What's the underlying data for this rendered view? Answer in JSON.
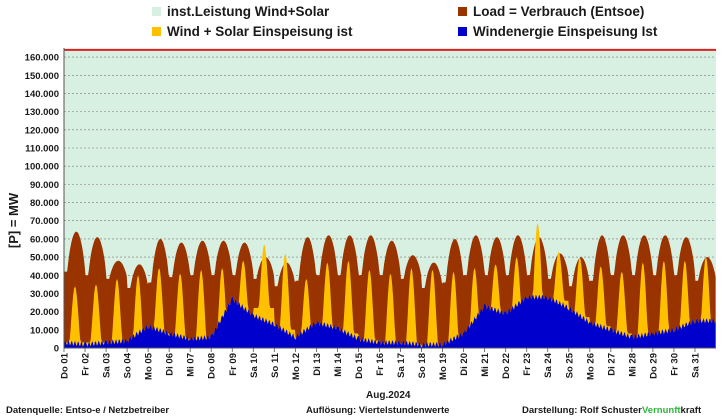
{
  "chart_data": {
    "type": "area",
    "title": "",
    "xlabel": "Aug.2024",
    "ylabel": "[P] = MW",
    "ylim": [
      0,
      165000
    ],
    "yticks": [
      0,
      10000,
      20000,
      30000,
      40000,
      50000,
      60000,
      70000,
      80000,
      90000,
      100000,
      110000,
      120000,
      130000,
      140000,
      150000,
      160000
    ],
    "ytick_labels": [
      "0",
      "10.000",
      "20.000",
      "30.000",
      "40.000",
      "50.000",
      "60.000",
      "70.000",
      "80.000",
      "90.000",
      "100.000",
      "110.000",
      "120.000",
      "130.000",
      "140.000",
      "150.000",
      "160.000"
    ],
    "categories": [
      "Do 01",
      "Fr 02",
      "Sa 03",
      "So 04",
      "Mo 05",
      "Di 06",
      "Mi 07",
      "Do 08",
      "Fr 09",
      "Sa 10",
      "So 11",
      "Mo 12",
      "Di 13",
      "Mi 14",
      "Do 15",
      "Fr 16",
      "Sa 17",
      "So 18",
      "Mo 19",
      "Di 20",
      "Mi 21",
      "Do 22",
      "Fr 23",
      "Sa 24",
      "So 25",
      "Mo 26",
      "Di 27",
      "Mi 28",
      "Do 29",
      "Fr 30",
      "Sa 31"
    ],
    "grid": true,
    "legend_position": "top",
    "installed_capacity_mw": 164000,
    "series": [
      {
        "name": "inst.Leistung Wind+Solar",
        "color": "#d7f0e2",
        "values": [
          164000,
          164000,
          164000,
          164000,
          164000,
          164000,
          164000,
          164000,
          164000,
          164000,
          164000,
          164000,
          164000,
          164000,
          164000,
          164000,
          164000,
          164000,
          164000,
          164000,
          164000,
          164000,
          164000,
          164000,
          164000,
          164000,
          164000,
          164000,
          164000,
          164000,
          164000
        ]
      },
      {
        "name": "Load =  Verbrauch (Entsoe)",
        "color": "#993300",
        "daily_peak": [
          64000,
          61000,
          48000,
          46000,
          60000,
          58000,
          59000,
          59000,
          58000,
          50000,
          47000,
          61000,
          62000,
          62000,
          62000,
          59000,
          51000,
          47000,
          60000,
          62000,
          61000,
          62000,
          61000,
          52000,
          50000,
          62000,
          62000,
          62000,
          62000,
          61000,
          50000
        ],
        "daily_min": [
          42000,
          40000,
          38000,
          33000,
          36000,
          39000,
          40000,
          40000,
          40000,
          38000,
          34000,
          37000,
          40000,
          40000,
          40000,
          40000,
          38000,
          33000,
          36000,
          40000,
          40000,
          40000,
          40000,
          38000,
          34000,
          37000,
          40000,
          40000,
          40000,
          40000,
          37000
        ]
      },
      {
        "name": "Wind + Solar Einspeisung ist",
        "color": "#ffc000",
        "daily_peak": [
          34000,
          35000,
          38000,
          40000,
          44000,
          41000,
          43000,
          44000,
          48000,
          57000,
          52000,
          38000,
          47000,
          48000,
          43000,
          41000,
          44000,
          43000,
          42000,
          44000,
          46000,
          50000,
          69000,
          53000,
          50000,
          45000,
          42000,
          47000,
          48000,
          48000,
          50000
        ],
        "daily_min": [
          3000,
          3000,
          2000,
          2000,
          8000,
          5000,
          3000,
          4000,
          18000,
          22000,
          10000,
          5000,
          10000,
          8000,
          4000,
          2000,
          2000,
          1000,
          1000,
          6000,
          17000,
          16000,
          21000,
          26000,
          17000,
          12000,
          8000,
          5000,
          6000,
          8000,
          10000
        ]
      },
      {
        "name": "Windenergie Einspeisung Ist",
        "color": "#0000cc",
        "daily_mean": [
          3000,
          2000,
          3000,
          4000,
          12000,
          8000,
          5000,
          6000,
          27000,
          18000,
          13000,
          6000,
          14000,
          11000,
          5000,
          3000,
          3000,
          2000,
          2000,
          8000,
          23000,
          19000,
          28000,
          28000,
          22000,
          14000,
          10000,
          6000,
          8000,
          10000,
          15000
        ]
      }
    ]
  },
  "footer": {
    "source": "Datenquelle:  Entso-e  / Netzbetreiber",
    "resolution": "Auflösung: Viertelstundenwerte",
    "author": "Darstellung:  Rolf Schuster",
    "brand_part1": "Vernunft",
    "brand_part2": "kraft"
  }
}
